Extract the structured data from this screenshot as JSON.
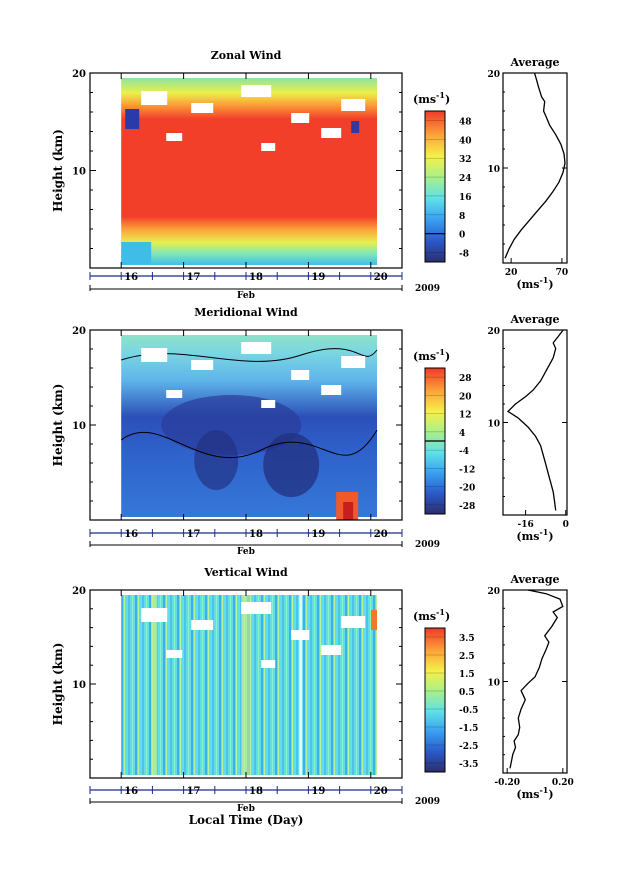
{
  "figure": {
    "time_axis": {
      "ticks": [
        "16",
        "17",
        "18",
        "19",
        "20"
      ],
      "month_label": "Feb",
      "year_label": "2009",
      "xlabel": "Local Time (Day)"
    }
  },
  "chart_data": [
    {
      "type": "heatmap",
      "title": "Zonal Wind",
      "ylabel": "Height (km)",
      "yticks": [
        "20",
        "10"
      ],
      "ylim": [
        0,
        20
      ],
      "xlim": [
        15.5,
        20.5
      ],
      "data_range_x": [
        16.0,
        20.1
      ],
      "colorbar": {
        "unit_label": "(ms",
        "unit_sup": "-1",
        "unit_close": ")",
        "ticks": [
          "48",
          "40",
          "32",
          "24",
          "16",
          "8",
          "0",
          "-8"
        ],
        "tick_values": [
          48,
          40,
          32,
          24,
          16,
          8,
          0,
          -8
        ],
        "range": [
          -12,
          52
        ],
        "zero_line": 0
      },
      "grid": false
    },
    {
      "type": "line",
      "title": "Average",
      "xlabel": "(ms",
      "xlabel_sup": "-1",
      "xlabel_close": ")",
      "xticks": [
        "20",
        "70"
      ],
      "xtick_values": [
        20,
        70
      ],
      "xlim": [
        12,
        75
      ],
      "yticks": [
        "20",
        "10"
      ],
      "ylim": [
        0,
        20
      ],
      "series": [
        {
          "x": [
            14,
            18,
            23,
            30,
            38,
            46,
            54,
            61,
            67,
            71,
            73,
            72,
            69,
            64,
            58,
            54,
            52,
            53,
            50,
            47,
            45,
            43
          ],
          "y": [
            0.5,
            1.5,
            2.5,
            3.5,
            4.5,
            5.5,
            6.5,
            7.5,
            8.5,
            9.5,
            10.5,
            11.5,
            12.5,
            13.5,
            14.5,
            15.5,
            16.0,
            17.0,
            17.5,
            18.5,
            19.3,
            20.0
          ]
        }
      ]
    },
    {
      "type": "heatmap",
      "title": "Meridional Wind",
      "ylabel": "Height (km)",
      "yticks": [
        "20",
        "10"
      ],
      "ylim": [
        0,
        20
      ],
      "xlim": [
        15.5,
        20.5
      ],
      "data_range_x": [
        16.0,
        20.1
      ],
      "colorbar": {
        "unit_label": "(ms",
        "unit_sup": "-1",
        "unit_close": ")",
        "ticks": [
          "28",
          "20",
          "12",
          "4",
          "-4",
          "-12",
          "-20",
          "-28"
        ],
        "tick_values": [
          28,
          20,
          12,
          4,
          -4,
          -12,
          -20,
          -28
        ],
        "range": [
          -32,
          32
        ],
        "zero_line": 0
      },
      "grid": false
    },
    {
      "type": "line",
      "title": "Average",
      "xlabel": "(ms",
      "xlabel_sup": "-1",
      "xlabel_close": ")",
      "xticks": [
        "-16",
        "0"
      ],
      "xtick_values": [
        -16,
        0
      ],
      "xlim": [
        -25,
        0.5
      ],
      "yticks": [
        "20",
        "10"
      ],
      "ylim": [
        0,
        20
      ],
      "series": [
        {
          "x": [
            -4,
            -4.5,
            -5,
            -6,
            -7,
            -8,
            -9,
            -10,
            -12,
            -15,
            -19,
            -23,
            -20,
            -16,
            -13,
            -10,
            -8,
            -6,
            -5,
            -4,
            -5,
            -3,
            -1
          ],
          "y": [
            0.5,
            1.5,
            2.5,
            3.5,
            4.5,
            5.5,
            6.5,
            7.5,
            8.5,
            9.5,
            10.5,
            11.2,
            12.0,
            12.8,
            13.5,
            14.5,
            15.5,
            16.5,
            17.0,
            18.0,
            18.6,
            19.3,
            20.0
          ]
        }
      ]
    },
    {
      "type": "heatmap",
      "title": "Vertical Wind",
      "ylabel": "Height (km)",
      "yticks": [
        "20",
        "10"
      ],
      "ylim": [
        0,
        20
      ],
      "xlim": [
        15.5,
        20.5
      ],
      "data_range_x": [
        16.0,
        20.1
      ],
      "colorbar": {
        "unit_label": "(ms",
        "unit_sup": "-1",
        "unit_close": ")",
        "ticks": [
          "3.5",
          "2.5",
          "1.5",
          "0.5",
          "-0.5",
          "-1.5",
          "-2.5",
          "-3.5"
        ],
        "tick_values": [
          3.5,
          2.5,
          1.5,
          0.5,
          -0.5,
          -1.5,
          -2.5,
          -3.5
        ],
        "range": [
          -4,
          4
        ]
      },
      "grid": false
    },
    {
      "type": "line",
      "title": "Average",
      "xlabel": "(ms",
      "xlabel_sup": "-1",
      "xlabel_close": ")",
      "xticks": [
        "-0.20",
        "0.20"
      ],
      "xtick_values": [
        -0.2,
        0.2
      ],
      "xlim": [
        -0.23,
        0.23
      ],
      "yticks": [
        "20",
        "10"
      ],
      "ylim": [
        0,
        20
      ],
      "series": [
        {
          "x": [
            -0.18,
            -0.17,
            -0.16,
            -0.14,
            -0.15,
            -0.12,
            -0.11,
            -0.12,
            -0.1,
            -0.07,
            -0.1,
            -0.05,
            0.0,
            0.03,
            0.05,
            0.08,
            0.1,
            0.07,
            0.12,
            0.16,
            0.13,
            0.2,
            0.18,
            0.08,
            -0.05
          ],
          "y": [
            0.5,
            1.2,
            2.0,
            2.8,
            3.5,
            4.2,
            5.0,
            6.0,
            7.0,
            8.0,
            9.0,
            9.8,
            10.5,
            11.5,
            12.5,
            13.5,
            14.3,
            15.0,
            16.0,
            17.0,
            17.6,
            18.2,
            19.0,
            19.6,
            20.0
          ]
        }
      ]
    }
  ]
}
